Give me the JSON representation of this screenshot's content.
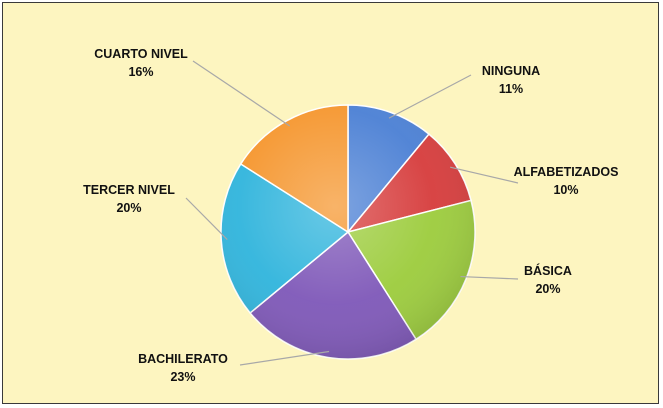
{
  "chart_data": {
    "type": "pie",
    "title": "",
    "slices": [
      {
        "label": "NINGUNA",
        "value": 11,
        "value_label": "11%",
        "color": "#4a7fd4"
      },
      {
        "label": "ALFABETIZADOS",
        "value": 10,
        "value_label": "10%",
        "color": "#d63b3b"
      },
      {
        "label": "BÁSICA",
        "value": 20,
        "value_label": "20%",
        "color": "#9ccc3c"
      },
      {
        "label": "BACHILERATO",
        "value": 23,
        "value_label": "23%",
        "color": "#7e57b8"
      },
      {
        "label": "TERCER NIVEL",
        "value": 20,
        "value_label": "20%",
        "color": "#2fb4dc"
      },
      {
        "label": "CUARTO NIVEL",
        "value": 16,
        "value_label": "16%",
        "color": "#f5962e"
      }
    ],
    "start_angle_deg": 0,
    "direction": "clockwise",
    "legend": "none"
  }
}
